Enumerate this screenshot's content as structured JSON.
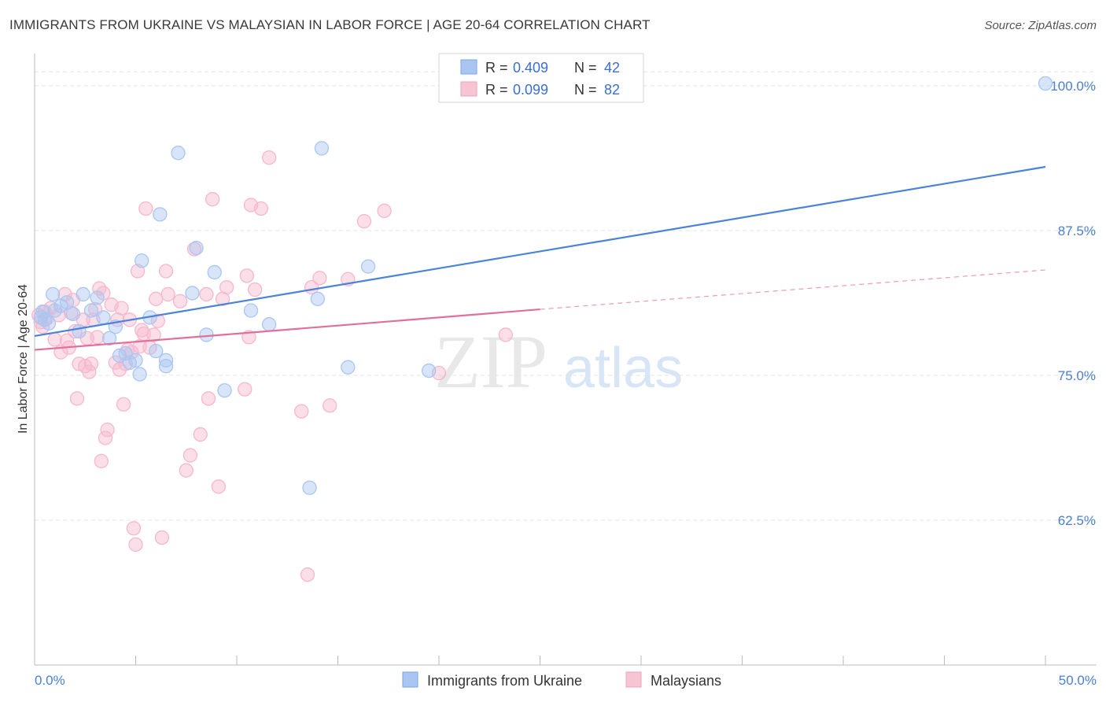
{
  "header": {
    "title": "IMMIGRANTS FROM UKRAINE VS MALAYSIAN IN LABOR FORCE | AGE 20-64 CORRELATION CHART",
    "source": "Source: ZipAtlas.com"
  },
  "watermark": {
    "zip": "ZIP",
    "atlas": "atlas"
  },
  "legend": {
    "r_label": "R =",
    "n_label": "N =",
    "entries": [
      {
        "r": "0.409",
        "n": "42",
        "color": "#a9c6f2"
      },
      {
        "r": "0.099",
        "n": "82",
        "color": "#f7b7cc"
      }
    ]
  },
  "bottom_legend": [
    {
      "label": "Immigrants from Ukraine",
      "color": "#a9c6f2"
    },
    {
      "label": "Malaysians",
      "color": "#f7b7cc"
    }
  ],
  "chart_data": {
    "type": "scatter",
    "ylabel": "In Labor Force | Age 20-64",
    "xlim": [
      0,
      50
    ],
    "ylim": [
      50,
      102
    ],
    "x_tick_labels": [
      "0.0%",
      "50.0%"
    ],
    "y_ticks": [
      62.5,
      75.0,
      87.5,
      100.0
    ],
    "y_tick_labels": [
      "62.5%",
      "75.0%",
      "87.5%",
      "100.0%"
    ],
    "grid": true,
    "series": [
      {
        "name": "Immigrants from Ukraine",
        "color": "#4a84d8",
        "fill": "#a9c6f2",
        "trend": {
          "x": [
            0,
            50
          ],
          "y": [
            78.4,
            93.0
          ]
        },
        "points": [
          [
            0.3,
            80.0
          ],
          [
            0.5,
            79.8
          ],
          [
            0.4,
            80.5
          ],
          [
            0.7,
            79.5
          ],
          [
            0.9,
            82.0
          ],
          [
            1.0,
            80.6
          ],
          [
            1.3,
            81.0
          ],
          [
            1.6,
            81.3
          ],
          [
            1.9,
            80.3
          ],
          [
            2.2,
            78.8
          ],
          [
            2.4,
            82.0
          ],
          [
            2.8,
            80.6
          ],
          [
            3.1,
            81.7
          ],
          [
            3.4,
            80.0
          ],
          [
            3.7,
            78.2
          ],
          [
            4.0,
            79.2
          ],
          [
            4.2,
            76.7
          ],
          [
            4.5,
            76.9
          ],
          [
            4.7,
            76.1
          ],
          [
            5.0,
            76.3
          ],
          [
            5.2,
            75.1
          ],
          [
            5.3,
            84.9
          ],
          [
            5.7,
            80.0
          ],
          [
            6.0,
            77.1
          ],
          [
            6.2,
            88.9
          ],
          [
            6.5,
            76.3
          ],
          [
            6.5,
            75.8
          ],
          [
            7.1,
            94.2
          ],
          [
            7.8,
            82.1
          ],
          [
            8.0,
            86.0
          ],
          [
            8.5,
            78.5
          ],
          [
            8.9,
            83.9
          ],
          [
            9.4,
            73.7
          ],
          [
            10.7,
            80.6
          ],
          [
            11.6,
            79.4
          ],
          [
            13.6,
            65.3
          ],
          [
            14.0,
            81.6
          ],
          [
            14.2,
            94.6
          ],
          [
            15.5,
            75.7
          ],
          [
            16.5,
            84.4
          ],
          [
            19.5,
            75.4
          ],
          [
            50.0,
            100.2
          ]
        ]
      },
      {
        "name": "Malaysians",
        "color": "#e0709a",
        "fill": "#f7b7cc",
        "trend": {
          "x": [
            0,
            25
          ],
          "y": [
            77.2,
            80.7
          ]
        },
        "trend_dashed": {
          "x": [
            25,
            50
          ],
          "y": [
            80.7,
            84.1
          ]
        },
        "points": [
          [
            0.2,
            80.2
          ],
          [
            0.3,
            79.6
          ],
          [
            0.5,
            80.5
          ],
          [
            0.6,
            79.9
          ],
          [
            0.8,
            80.8
          ],
          [
            1.0,
            78.1
          ],
          [
            1.2,
            80.2
          ],
          [
            1.3,
            77.0
          ],
          [
            1.5,
            82.0
          ],
          [
            1.6,
            78.0
          ],
          [
            1.7,
            77.4
          ],
          [
            1.9,
            81.5
          ],
          [
            2.0,
            78.8
          ],
          [
            2.1,
            73.0
          ],
          [
            2.2,
            76.0
          ],
          [
            2.4,
            79.8
          ],
          [
            2.5,
            75.8
          ],
          [
            2.6,
            78.2
          ],
          [
            2.7,
            75.3
          ],
          [
            2.8,
            76.0
          ],
          [
            2.9,
            79.8
          ],
          [
            3.1,
            78.3
          ],
          [
            3.2,
            82.5
          ],
          [
            3.3,
            67.6
          ],
          [
            3.4,
            82.1
          ],
          [
            3.5,
            69.6
          ],
          [
            3.6,
            70.3
          ],
          [
            3.8,
            81.1
          ],
          [
            4.0,
            76.1
          ],
          [
            4.1,
            79.8
          ],
          [
            4.2,
            75.5
          ],
          [
            4.3,
            80.8
          ],
          [
            4.4,
            72.5
          ],
          [
            4.5,
            76.0
          ],
          [
            4.7,
            79.8
          ],
          [
            4.8,
            77.0
          ],
          [
            4.9,
            61.8
          ],
          [
            5.0,
            60.4
          ],
          [
            5.1,
            84.0
          ],
          [
            5.2,
            77.5
          ],
          [
            5.3,
            78.9
          ],
          [
            5.4,
            78.6
          ],
          [
            5.5,
            89.4
          ],
          [
            5.7,
            77.4
          ],
          [
            5.9,
            78.5
          ],
          [
            6.0,
            81.6
          ],
          [
            6.1,
            79.7
          ],
          [
            6.3,
            61.0
          ],
          [
            6.5,
            84.0
          ],
          [
            6.6,
            82.0
          ],
          [
            7.2,
            81.4
          ],
          [
            7.5,
            66.8
          ],
          [
            7.7,
            68.1
          ],
          [
            7.9,
            85.9
          ],
          [
            8.2,
            69.9
          ],
          [
            8.5,
            82.0
          ],
          [
            8.6,
            73.0
          ],
          [
            8.8,
            90.2
          ],
          [
            9.1,
            65.4
          ],
          [
            9.3,
            81.6
          ],
          [
            9.5,
            82.6
          ],
          [
            10.4,
            73.8
          ],
          [
            10.5,
            83.6
          ],
          [
            10.6,
            78.3
          ],
          [
            10.7,
            89.7
          ],
          [
            10.9,
            82.4
          ],
          [
            11.2,
            89.4
          ],
          [
            11.6,
            93.8
          ],
          [
            13.2,
            71.9
          ],
          [
            13.5,
            57.8
          ],
          [
            13.7,
            82.6
          ],
          [
            14.1,
            83.4
          ],
          [
            14.6,
            72.4
          ],
          [
            15.5,
            83.3
          ],
          [
            16.3,
            88.3
          ],
          [
            17.3,
            89.2
          ],
          [
            20.0,
            75.2
          ],
          [
            23.3,
            78.5
          ],
          [
            0.4,
            79.2
          ],
          [
            1.8,
            80.4
          ],
          [
            3.0,
            80.7
          ],
          [
            4.6,
            77.2
          ]
        ]
      }
    ]
  }
}
